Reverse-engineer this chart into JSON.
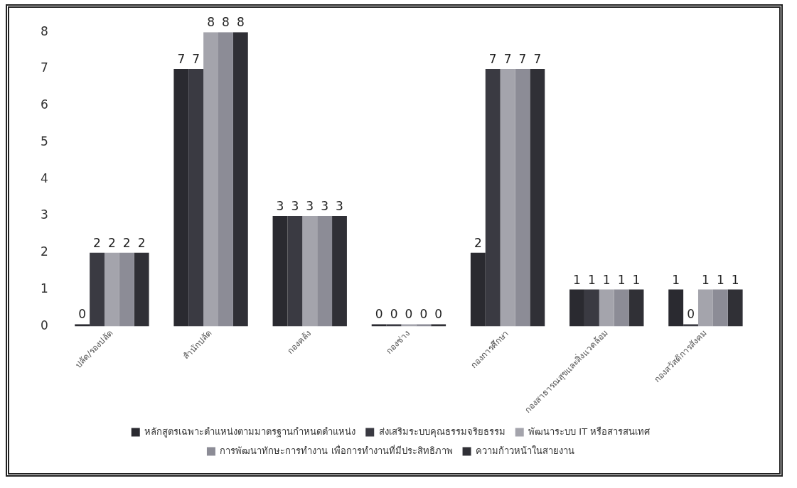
{
  "chart_data": {
    "type": "bar",
    "categories": [
      "ปลัด/รองปลัด",
      "สำนักปลัด",
      "กองคลัง",
      "กองช่าง",
      "กองการศึกษา",
      "กองสาธารณสุขและสิ่งแวดล้อม",
      "กองสวัสดิการสังคม"
    ],
    "series": [
      {
        "name": "หลักสูตรเฉพาะตำแหน่งตามมาตรฐานกำหนดตำแหน่ง",
        "color": "#2a2a30",
        "values": [
          0,
          7,
          3,
          0,
          2,
          1,
          1
        ]
      },
      {
        "name": "ส่งเสริมระบบคุณธรรมจริยธรรม",
        "color": "#3a3a42",
        "values": [
          2,
          7,
          3,
          0,
          7,
          1,
          0
        ]
      },
      {
        "name": "พัฒนาระบบ IT หรือสารสนเทศ",
        "color": "#a4a4ac",
        "values": [
          2,
          8,
          3,
          0,
          7,
          1,
          1
        ]
      },
      {
        "name": "การพัฒนาทักษะการทำงาน เพื่อการทำงานที่มีประสิทธิภาพ",
        "color": "#8c8c96",
        "values": [
          2,
          8,
          3,
          0,
          7,
          1,
          1
        ]
      },
      {
        "name": "ความก้าวหน้าในสายงาน",
        "color": "#303036",
        "values": [
          2,
          8,
          3,
          0,
          7,
          1,
          1
        ]
      }
    ],
    "ylim": [
      0,
      8
    ],
    "yticks": [
      0,
      1,
      2,
      3,
      4,
      5,
      6,
      7,
      8
    ],
    "grid": false,
    "legend": "bottom",
    "data_labels": true
  }
}
